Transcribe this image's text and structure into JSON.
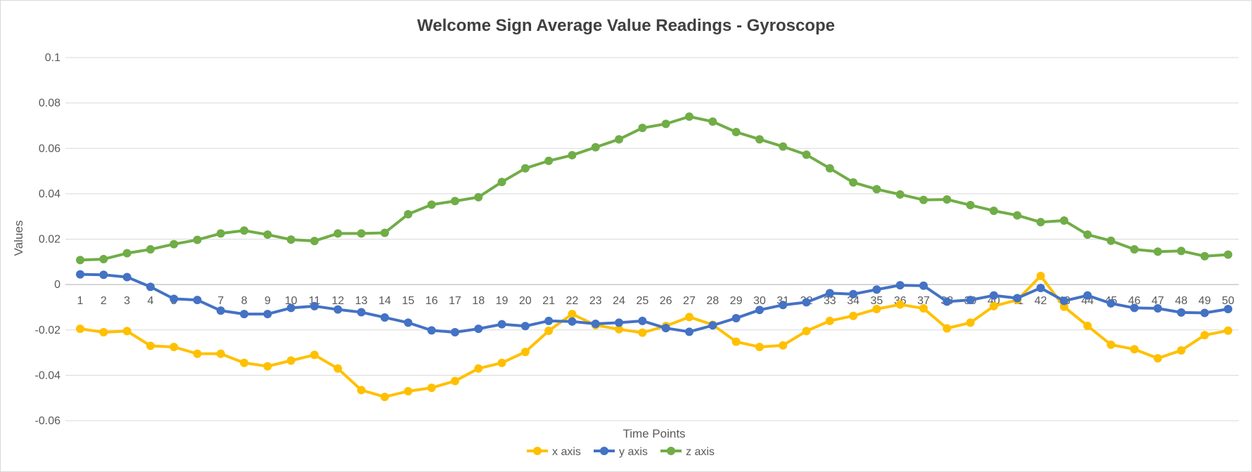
{
  "chart_data": {
    "type": "line",
    "title": "Welcome Sign Average Value Readings - Gyroscope",
    "xlabel": "Time Points",
    "ylabel": "Values",
    "ylim": [
      -0.06,
      0.1
    ],
    "yticks": [
      0.1,
      0.08,
      0.06,
      0.04,
      0.02,
      0,
      -0.02,
      -0.04,
      -0.06
    ],
    "ytick_labels": [
      "0.1",
      "0.08",
      "0.06",
      "0.04",
      "0.02",
      "0",
      "-0.02",
      "-0.04",
      "-0.06"
    ],
    "grid": true,
    "legend_position": "bottom",
    "categories": [
      "1",
      "2",
      "3",
      "4",
      "5",
      "6",
      "7",
      "8",
      "9",
      "10",
      "11",
      "12",
      "13",
      "14",
      "15",
      "16",
      "17",
      "18",
      "19",
      "20",
      "21",
      "22",
      "23",
      "24",
      "25",
      "26",
      "27",
      "28",
      "29",
      "30",
      "31",
      "32",
      "33",
      "34",
      "35",
      "36",
      "37",
      "38",
      "39",
      "40",
      "41",
      "42",
      "43",
      "44",
      "45",
      "46",
      "47",
      "48",
      "49",
      "50"
    ],
    "series": [
      {
        "name": "x axis",
        "color": "#FFC000",
        "values": [
          -0.0195,
          -0.021,
          -0.0205,
          -0.027,
          -0.0275,
          -0.0305,
          -0.0305,
          -0.0345,
          -0.036,
          -0.0335,
          -0.031,
          -0.037,
          -0.0465,
          -0.0495,
          -0.047,
          -0.0455,
          -0.0425,
          -0.037,
          -0.0345,
          -0.0297,
          -0.0204,
          -0.013,
          -0.0179,
          -0.0197,
          -0.0212,
          -0.0183,
          -0.0143,
          -0.0177,
          -0.0252,
          -0.0275,
          -0.0268,
          -0.0205,
          -0.016,
          -0.0138,
          -0.0108,
          -0.0088,
          -0.0105,
          -0.0193,
          -0.0168,
          -0.0095,
          -0.0068,
          0.0038,
          -0.0098,
          -0.0182,
          -0.0265,
          -0.0285,
          -0.0325,
          -0.029,
          -0.0223,
          -0.0203
        ]
      },
      {
        "name": "y axis",
        "color": "#4472C4",
        "values": [
          0.0045,
          0.0043,
          0.0033,
          -0.001,
          -0.0063,
          -0.0068,
          -0.0115,
          -0.013,
          -0.013,
          -0.0103,
          -0.0095,
          -0.011,
          -0.0122,
          -0.0145,
          -0.0168,
          -0.0202,
          -0.021,
          -0.0195,
          -0.0175,
          -0.0183,
          -0.016,
          -0.0163,
          -0.0173,
          -0.0168,
          -0.016,
          -0.0192,
          -0.0208,
          -0.018,
          -0.0148,
          -0.0112,
          -0.009,
          -0.0078,
          -0.0038,
          -0.0042,
          -0.0022,
          -0.0003,
          -0.0005,
          -0.0075,
          -0.0068,
          -0.0048,
          -0.006,
          -0.0015,
          -0.0072,
          -0.0048,
          -0.0083,
          -0.0103,
          -0.0105,
          -0.0123,
          -0.0125,
          -0.0108
        ]
      },
      {
        "name": "z axis",
        "color": "#70AD47",
        "values": [
          0.0108,
          0.0112,
          0.0138,
          0.0155,
          0.0178,
          0.0197,
          0.0225,
          0.0238,
          0.022,
          0.0198,
          0.0192,
          0.0225,
          0.0225,
          0.0228,
          0.031,
          0.0352,
          0.0368,
          0.0385,
          0.0452,
          0.0512,
          0.0545,
          0.057,
          0.0605,
          0.064,
          0.069,
          0.0708,
          0.074,
          0.0718,
          0.0672,
          0.064,
          0.0608,
          0.0572,
          0.0512,
          0.045,
          0.042,
          0.0397,
          0.0373,
          0.0375,
          0.035,
          0.0325,
          0.0305,
          0.0275,
          0.0282,
          0.022,
          0.0193,
          0.0155,
          0.0145,
          0.0148,
          0.0125,
          0.0132
        ]
      }
    ]
  }
}
